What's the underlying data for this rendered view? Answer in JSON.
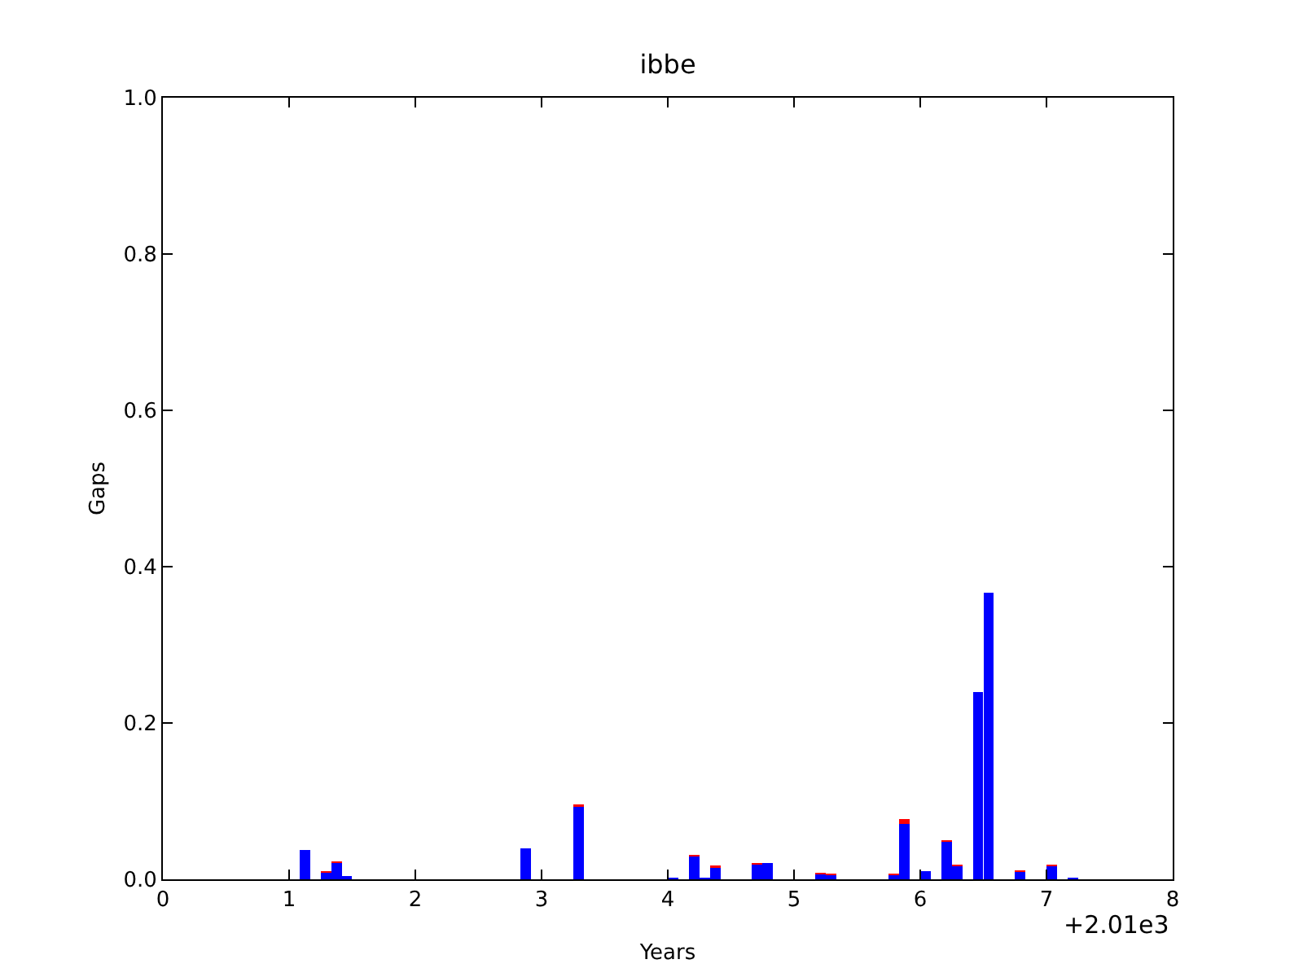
{
  "chart_data": {
    "type": "bar",
    "stacked": true,
    "title": "ibbe",
    "xlabel": "Years",
    "ylabel": "Gaps",
    "x": [
      1.125,
      1.292,
      1.375,
      1.458,
      2.875,
      3.292,
      4.042,
      4.208,
      4.292,
      4.375,
      4.708,
      4.792,
      5.208,
      5.292,
      5.792,
      5.875,
      6.042,
      6.208,
      6.292,
      6.458,
      6.542,
      6.792,
      7.042,
      7.208
    ],
    "series": [
      {
        "color": "#0000ff",
        "values": [
          0.038,
          0.008,
          0.021,
          0.004,
          0.04,
          0.093,
          0.002,
          0.029,
          0.002,
          0.015,
          0.019,
          0.021,
          0.006,
          0.005,
          0.005,
          0.071,
          0.01,
          0.048,
          0.017,
          0.24,
          0.367,
          0.009,
          0.017,
          0.002
        ]
      },
      {
        "color": "#ff0000",
        "values": [
          null,
          0.002,
          0.002,
          null,
          null,
          0.003,
          null,
          0.002,
          null,
          0.003,
          0.002,
          null,
          0.002,
          0.002,
          0.002,
          0.006,
          null,
          0.002,
          0.002,
          null,
          null,
          0.002,
          0.002,
          null
        ]
      }
    ],
    "xlim": [
      0,
      8
    ],
    "xticks": [
      0,
      1,
      2,
      3,
      4,
      5,
      6,
      7,
      8
    ],
    "ylim": [
      0,
      1
    ],
    "yticks": [
      {
        "value": 0,
        "label": "0.0"
      },
      {
        "value": 0.2,
        "label": "0.2"
      },
      {
        "value": 0.4,
        "label": "0.4"
      },
      {
        "value": 0.6,
        "label": "0.6"
      },
      {
        "value": 0.8,
        "label": "0.8"
      },
      {
        "value": 1,
        "label": "1.0"
      }
    ],
    "grid": false,
    "annotations": [
      "+2.01e3"
    ]
  }
}
